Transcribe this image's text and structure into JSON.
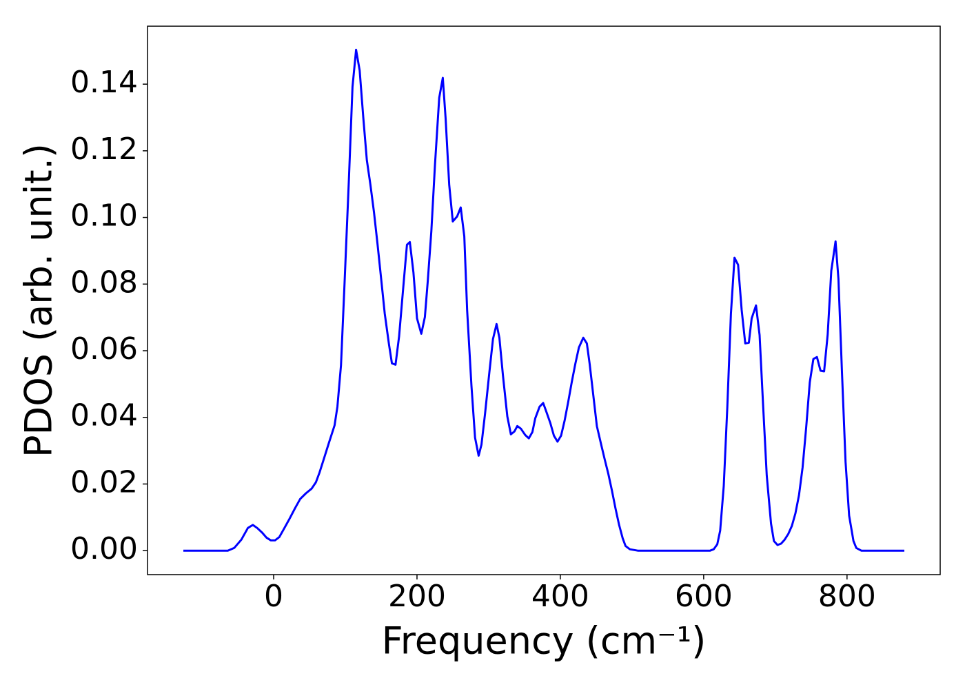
{
  "chart_data": {
    "type": "line",
    "xlabel": "Frequency (cm⁻¹)",
    "ylabel": "PDOS (arb. unit.)",
    "color": "#0000ff",
    "x": [
      -126,
      -64,
      -55,
      -45,
      -36,
      -29,
      -23,
      -16,
      -10,
      -4,
      2,
      8,
      14,
      22,
      30,
      37,
      45,
      53,
      59,
      64,
      70,
      77,
      85,
      89,
      94,
      99,
      105,
      110,
      115,
      120,
      125,
      130,
      135,
      140,
      145,
      150,
      155,
      161,
      165,
      170,
      175,
      181,
      186,
      190,
      195,
      200,
      206,
      211,
      215,
      220,
      225,
      231,
      236,
      240,
      245,
      250,
      256,
      261,
      266,
      270,
      276,
      281,
      286,
      290,
      295,
      301,
      306,
      311,
      315,
      320,
      326,
      331,
      336,
      340,
      345,
      351,
      356,
      361,
      365,
      371,
      376,
      380,
      386,
      391,
      396,
      401,
      406,
      411,
      416,
      421,
      426,
      432,
      437,
      441,
      446,
      451,
      457,
      462,
      467,
      472,
      477,
      482,
      487,
      491,
      497,
      508,
      609,
      614,
      619,
      623,
      628,
      633,
      638,
      643,
      648,
      653,
      658,
      663,
      667,
      673,
      678,
      683,
      688,
      694,
      698,
      703,
      708,
      713,
      718,
      723,
      728,
      733,
      738,
      743,
      748,
      753,
      758,
      763,
      768,
      773,
      778,
      784,
      788,
      793,
      798,
      803,
      809,
      813,
      820,
      880
    ],
    "values": [
      0,
      0,
      0.0008,
      0.0033,
      0.0068,
      0.0077,
      0.0068,
      0.0054,
      0.0039,
      0.0031,
      0.0031,
      0.0041,
      0.0064,
      0.0095,
      0.0128,
      0.0155,
      0.0172,
      0.0186,
      0.0205,
      0.0234,
      0.0275,
      0.0323,
      0.0376,
      0.0432,
      0.0556,
      0.0804,
      0.1115,
      0.1392,
      0.1503,
      0.1441,
      0.1301,
      0.1172,
      0.1098,
      0.1015,
      0.0918,
      0.0815,
      0.0711,
      0.0618,
      0.0562,
      0.0558,
      0.0643,
      0.0794,
      0.0918,
      0.0926,
      0.0835,
      0.0697,
      0.0651,
      0.0701,
      0.0809,
      0.0959,
      0.1156,
      0.1359,
      0.1419,
      0.1297,
      0.1098,
      0.0988,
      0.1003,
      0.103,
      0.0943,
      0.0722,
      0.0494,
      0.0339,
      0.0285,
      0.0318,
      0.0411,
      0.0536,
      0.0635,
      0.068,
      0.0639,
      0.0525,
      0.0403,
      0.0349,
      0.0358,
      0.0374,
      0.0366,
      0.0347,
      0.0337,
      0.0356,
      0.0397,
      0.0432,
      0.0443,
      0.042,
      0.0383,
      0.0345,
      0.0327,
      0.0345,
      0.0391,
      0.0447,
      0.0507,
      0.0562,
      0.061,
      0.0639,
      0.0622,
      0.056,
      0.0467,
      0.0374,
      0.0318,
      0.0273,
      0.023,
      0.018,
      0.0126,
      0.0077,
      0.0037,
      0.0014,
      0.0004,
      0,
      0,
      0.0004,
      0.0019,
      0.006,
      0.0194,
      0.0432,
      0.0711,
      0.0879,
      0.0858,
      0.0722,
      0.0622,
      0.0624,
      0.0697,
      0.0736,
      0.0647,
      0.0432,
      0.0225,
      0.0081,
      0.0029,
      0.0017,
      0.0021,
      0.0033,
      0.005,
      0.0074,
      0.0112,
      0.0167,
      0.025,
      0.037,
      0.0505,
      0.0575,
      0.0581,
      0.054,
      0.0538,
      0.0649,
      0.084,
      0.0928,
      0.0815,
      0.0536,
      0.0267,
      0.0105,
      0.0029,
      0.0008,
      0,
      0
    ],
    "xlim": [
      -176,
      930
    ],
    "ylim": [
      -0.0072,
      0.1574
    ],
    "xticks": [
      0,
      200,
      400,
      600,
      800
    ],
    "yticks": [
      {
        "value": 0,
        "label": "0.00"
      },
      {
        "value": 0.02,
        "label": "0.02"
      },
      {
        "value": 0.04,
        "label": "0.04"
      },
      {
        "value": 0.06,
        "label": "0.06"
      },
      {
        "value": 0.08,
        "label": "0.08"
      },
      {
        "value": 0.1,
        "label": "0.10"
      },
      {
        "value": 0.12,
        "label": "0.12"
      },
      {
        "value": 0.14,
        "label": "0.14"
      }
    ],
    "grid": false
  }
}
